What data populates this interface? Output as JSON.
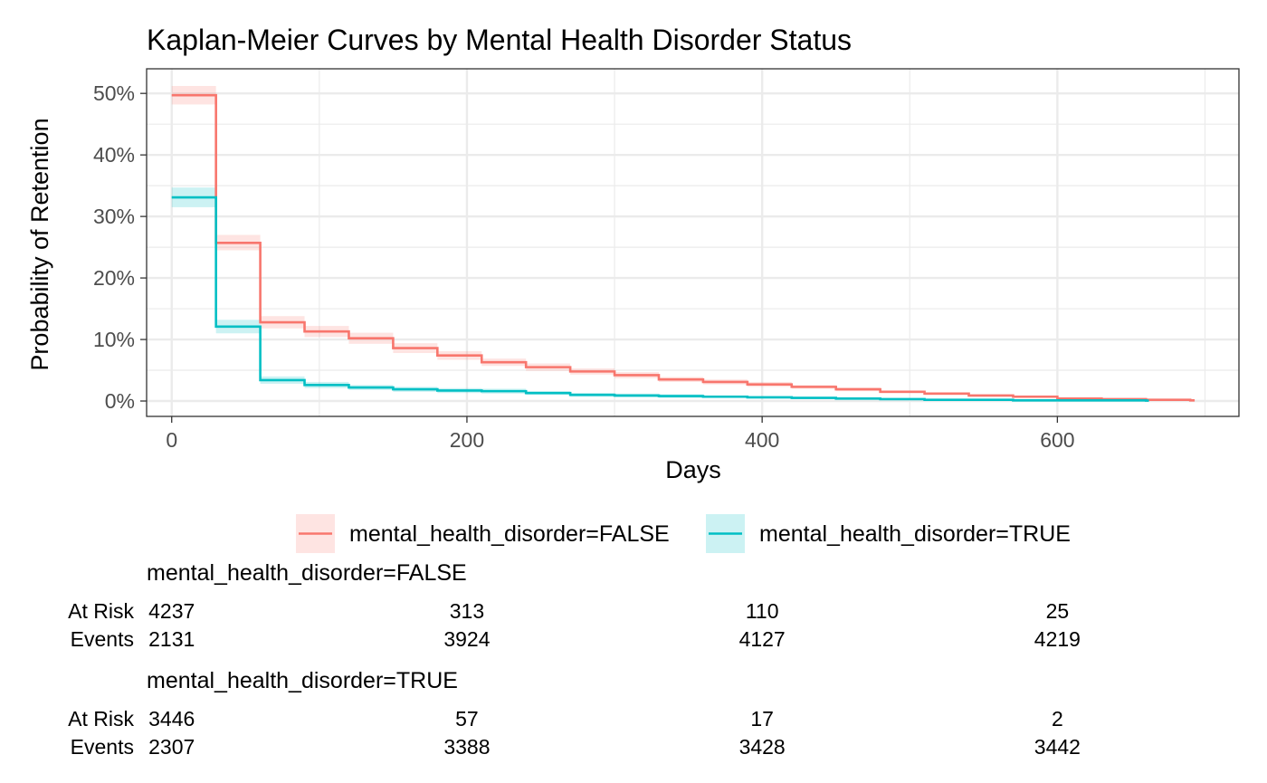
{
  "chart_data": {
    "type": "line",
    "subtype": "kaplan-meier-step",
    "title": "Kaplan-Meier Curves by Mental Health Disorder Status",
    "xlabel": "Days",
    "ylabel": "Probability of Retention",
    "xlim": [
      -17,
      723
    ],
    "ylim": [
      -0.025,
      0.54
    ],
    "x_ticks": [
      0,
      200,
      400,
      600
    ],
    "y_ticks": [
      0,
      0.1,
      0.2,
      0.3,
      0.4,
      0.5
    ],
    "y_tick_labels": [
      "0%",
      "10%",
      "20%",
      "30%",
      "40%",
      "50%"
    ],
    "grid": true,
    "legend_position": "bottom",
    "series": [
      {
        "name": "mental_health_disorder=FALSE",
        "color": "#F8766D",
        "x": [
          0,
          30,
          60,
          90,
          120,
          150,
          180,
          210,
          240,
          270,
          300,
          330,
          360,
          390,
          420,
          450,
          480,
          510,
          540,
          570,
          600,
          630,
          660,
          690
        ],
        "y": [
          0.497,
          0.257,
          0.128,
          0.113,
          0.102,
          0.086,
          0.074,
          0.063,
          0.055,
          0.048,
          0.042,
          0.035,
          0.031,
          0.027,
          0.023,
          0.019,
          0.015,
          0.012,
          0.009,
          0.007,
          0.004,
          0.003,
          0.002,
          0.001
        ],
        "lower": [
          0.482,
          0.245,
          0.118,
          0.104,
          0.093,
          0.078,
          0.067,
          0.057,
          0.049,
          0.043,
          0.037,
          0.031,
          0.027,
          0.023,
          0.02,
          0.016,
          0.013,
          0.01,
          0.007,
          0.005,
          0.003,
          0.002,
          0.001,
          0.0005
        ],
        "upper": [
          0.512,
          0.27,
          0.138,
          0.122,
          0.111,
          0.094,
          0.081,
          0.069,
          0.061,
          0.053,
          0.047,
          0.039,
          0.035,
          0.031,
          0.026,
          0.022,
          0.017,
          0.014,
          0.011,
          0.009,
          0.005,
          0.004,
          0.003,
          0.002
        ],
        "end_x": 693
      },
      {
        "name": "mental_health_disorder=TRUE",
        "color": "#00BFC4",
        "x": [
          0,
          30,
          60,
          90,
          120,
          150,
          180,
          210,
          240,
          270,
          300,
          330,
          360,
          390,
          420,
          450,
          480,
          510,
          540,
          570,
          600,
          630,
          660
        ],
        "y": [
          0.331,
          0.121,
          0.034,
          0.026,
          0.022,
          0.019,
          0.017,
          0.016,
          0.013,
          0.01,
          0.009,
          0.008,
          0.007,
          0.006,
          0.005,
          0.004,
          0.003,
          0.002,
          0.002,
          0.001,
          0.001,
          0.001,
          0.0006
        ],
        "lower": [
          0.315,
          0.11,
          0.028,
          0.021,
          0.018,
          0.015,
          0.013,
          0.012,
          0.01,
          0.007,
          0.006,
          0.005,
          0.005,
          0.004,
          0.003,
          0.002,
          0.002,
          0.001,
          0.001,
          0.0005,
          0.0005,
          0.0005,
          0.0002
        ],
        "upper": [
          0.347,
          0.132,
          0.04,
          0.031,
          0.026,
          0.023,
          0.021,
          0.02,
          0.016,
          0.013,
          0.012,
          0.011,
          0.009,
          0.008,
          0.007,
          0.006,
          0.004,
          0.003,
          0.003,
          0.002,
          0.002,
          0.002,
          0.001
        ],
        "end_x": 662
      }
    ],
    "risk_table": {
      "time_points": [
        0,
        200,
        400,
        600
      ],
      "row_labels": [
        "At Risk",
        "Events"
      ],
      "groups": [
        {
          "title": "mental_health_disorder=FALSE",
          "at_risk": [
            "4237",
            "313",
            "110",
            "25"
          ],
          "events": [
            "2131",
            "3924",
            "4127",
            "4219"
          ]
        },
        {
          "title": "mental_health_disorder=TRUE",
          "at_risk": [
            "3446",
            "57",
            "17",
            "2"
          ],
          "events": [
            "2307",
            "3388",
            "3428",
            "3442"
          ]
        }
      ]
    }
  }
}
